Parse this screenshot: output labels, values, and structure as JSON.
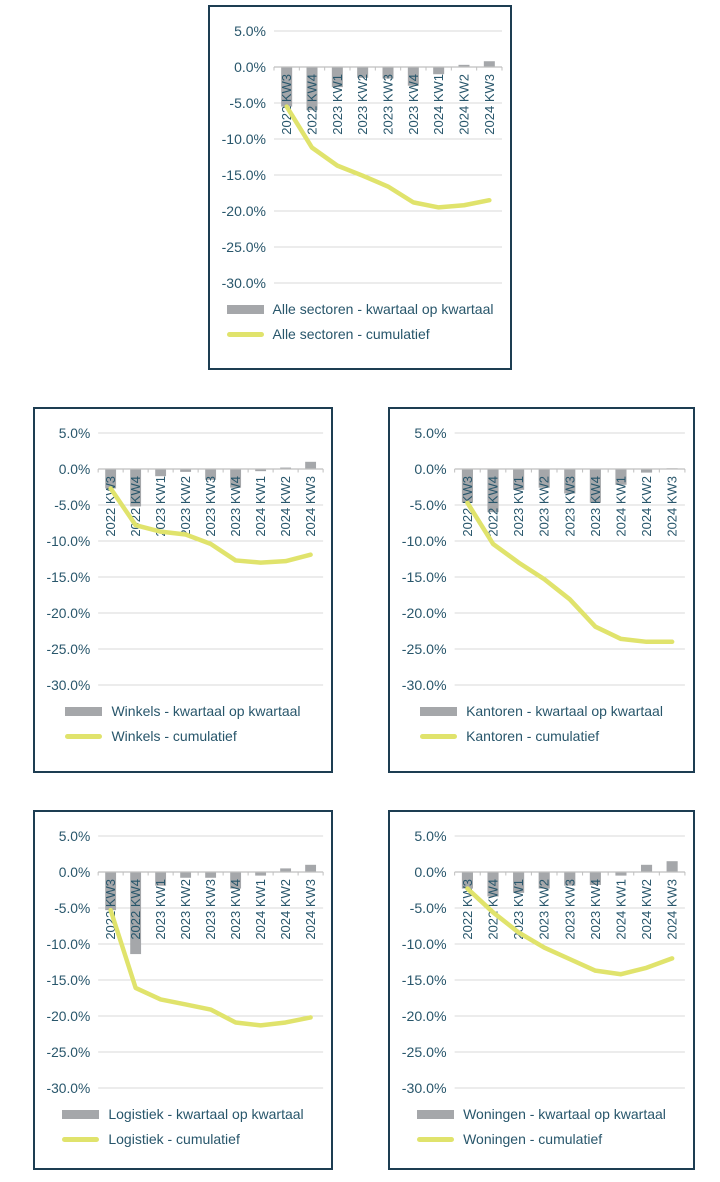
{
  "colors": {
    "bar": "#a5a7aa",
    "line": "#e0e36c",
    "text": "#28566b",
    "gridline": "#d9d9d9",
    "axis": "#bfbfbf",
    "box_border": "#1d3d52",
    "background": "#ffffff"
  },
  "axis": {
    "tick_labels": [
      "5.0%",
      "0.0%",
      "-5.0%",
      "-10.0%",
      "-15.0%",
      "-20.0%",
      "-25.0%",
      "-30.0%"
    ],
    "max": 5,
    "min": -30,
    "step": 5,
    "grid": true,
    "legend_position": "bottom"
  },
  "categories": [
    "2022 KW3",
    "2022 KW4",
    "2023 KW1",
    "2023 KW2",
    "2023 KW3",
    "2023 KW4",
    "2024 KW1",
    "2024 KW2",
    "2024 KW3"
  ],
  "chart_data": [
    {
      "type": "bar+line",
      "title": "Alle sectoren",
      "categories": [
        "2022 KW3",
        "2022 KW4",
        "2023 KW1",
        "2023 KW2",
        "2023 KW3",
        "2023 KW4",
        "2024 KW1",
        "2024 KW2",
        "2024 KW3"
      ],
      "ylim": [
        -30,
        5
      ],
      "series": [
        {
          "name": "Alle sectoren - kwartaal op kwartaal",
          "type": "bar",
          "values": [
            -5.5,
            -6.0,
            -2.8,
            -1.5,
            -1.6,
            -2.6,
            -1.0,
            0.3,
            0.8
          ]
        },
        {
          "name": "Alle sectoren - cumulatief",
          "type": "line",
          "values": [
            -5.5,
            -11.2,
            -13.7,
            -15.1,
            -16.6,
            -18.8,
            -19.5,
            -19.2,
            -18.5
          ]
        }
      ]
    },
    {
      "type": "bar+line",
      "title": "Winkels",
      "categories": [
        "2022 KW3",
        "2022 KW4",
        "2023 KW1",
        "2023 KW2",
        "2023 KW3",
        "2023 KW4",
        "2024 KW1",
        "2024 KW2",
        "2024 KW3"
      ],
      "ylim": [
        -30,
        5
      ],
      "series": [
        {
          "name": "Winkels - kwartaal op kwartaal",
          "type": "bar",
          "values": [
            -2.7,
            -5.2,
            -1.0,
            -0.4,
            -1.5,
            -2.6,
            -0.3,
            0.2,
            1.0
          ]
        },
        {
          "name": "Winkels - cumulatief",
          "type": "line",
          "values": [
            -2.7,
            -7.8,
            -8.7,
            -9.1,
            -10.4,
            -12.7,
            -13.0,
            -12.8,
            -11.9
          ]
        }
      ]
    },
    {
      "type": "bar+line",
      "title": "Kantoren",
      "categories": [
        "2022 KW3",
        "2022 KW4",
        "2023 KW1",
        "2023 KW2",
        "2023 KW3",
        "2023 KW4",
        "2024 KW1",
        "2024 KW2",
        "2024 KW3"
      ],
      "ylim": [
        -30,
        5
      ],
      "series": [
        {
          "name": "Kantoren - kwartaal op kwartaal",
          "type": "bar",
          "values": [
            -4.7,
            -6.0,
            -2.9,
            -2.6,
            -3.4,
            -4.7,
            -2.2,
            -0.5,
            0.1
          ]
        },
        {
          "name": "Kantoren - cumulatief",
          "type": "line",
          "values": [
            -4.7,
            -10.4,
            -13.0,
            -15.3,
            -18.1,
            -21.9,
            -23.6,
            -24.0,
            -24.0
          ]
        }
      ]
    },
    {
      "type": "bar+line",
      "title": "Logistiek",
      "categories": [
        "2022 KW3",
        "2022 KW4",
        "2023 KW1",
        "2023 KW2",
        "2023 KW3",
        "2023 KW4",
        "2024 KW1",
        "2024 KW2",
        "2024 KW3"
      ],
      "ylim": [
        -30,
        5
      ],
      "series": [
        {
          "name": "Logistiek - kwartaal op kwartaal",
          "type": "bar",
          "values": [
            -5.3,
            -11.4,
            -1.9,
            -0.8,
            -0.8,
            -2.3,
            -0.5,
            0.5,
            1.0
          ]
        },
        {
          "name": "Logistiek - cumulatief",
          "type": "line",
          "values": [
            -5.3,
            -16.1,
            -17.7,
            -18.4,
            -19.1,
            -20.9,
            -21.3,
            -20.9,
            -20.2
          ]
        }
      ]
    },
    {
      "type": "bar+line",
      "title": "Woningen",
      "categories": [
        "2022 KW3",
        "2022 KW4",
        "2023 KW1",
        "2023 KW2",
        "2023 KW3",
        "2023 KW4",
        "2024 KW1",
        "2024 KW2",
        "2024 KW3"
      ],
      "ylim": [
        -30,
        5
      ],
      "series": [
        {
          "name": "Woningen - kwartaal op kwartaal",
          "type": "bar",
          "values": [
            -2.3,
            -3.4,
            -2.9,
            -2.3,
            -1.9,
            -1.8,
            -0.5,
            1.0,
            1.5
          ]
        },
        {
          "name": "Woningen - cumulatief",
          "type": "line",
          "values": [
            -2.3,
            -5.6,
            -8.4,
            -10.5,
            -12.1,
            -13.7,
            -14.2,
            -13.3,
            -12.0
          ]
        }
      ]
    }
  ]
}
